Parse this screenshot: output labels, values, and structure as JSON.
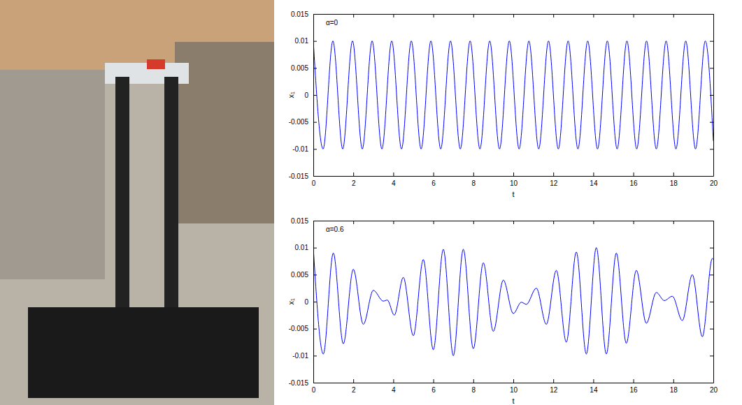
{
  "chart_data": [
    {
      "type": "line",
      "annotation": "α=0",
      "x_label": "t",
      "y_label": "x₁",
      "color": "#0000ff",
      "grid": false,
      "xlim": [
        0,
        20
      ],
      "xticks": [
        0,
        2,
        4,
        6,
        8,
        10,
        12,
        14,
        16,
        18,
        20
      ],
      "ylim": [
        -0.015,
        0.015
      ],
      "yticks": [
        -0.015,
        -0.01,
        -0.005,
        0,
        0.005,
        0.01,
        0.015
      ],
      "x": [
        0,
        0.49,
        0.98,
        1.47,
        1.96,
        2.45,
        2.94,
        3.43,
        3.92,
        4.41,
        4.9,
        5.39,
        5.88,
        6.37,
        6.86,
        7.35,
        7.84,
        8.33,
        8.82,
        9.31,
        9.8,
        10.29,
        10.78,
        11.27,
        11.76,
        12.25,
        12.74,
        13.23,
        13.72,
        14.21,
        14.7,
        15.19,
        15.68,
        16.17,
        16.66,
        17.15,
        17.64,
        18.13,
        18.62,
        19.11,
        19.6,
        20
      ],
      "values": [
        0.01,
        -0.01,
        0.01,
        -0.01,
        0.01,
        -0.01,
        0.01,
        -0.01,
        0.01,
        -0.01,
        0.01,
        -0.01,
        0.01,
        -0.01,
        0.01,
        -0.01,
        0.01,
        -0.01,
        0.01,
        -0.01,
        0.01,
        -0.01,
        0.01,
        -0.01,
        0.01,
        -0.01,
        0.01,
        -0.01,
        0.01,
        -0.01,
        0.01,
        -0.01,
        0.01,
        -0.01,
        0.01,
        -0.01,
        0.01,
        -0.01,
        0.01,
        -0.01,
        0.01,
        -0.0085
      ]
    },
    {
      "type": "line",
      "annotation": "α=0.6",
      "x_label": "t",
      "y_label": "x₁",
      "color": "#0000ff",
      "grid": false,
      "xlim": [
        0,
        20
      ],
      "xticks": [
        0,
        2,
        4,
        6,
        8,
        10,
        12,
        14,
        16,
        18,
        20
      ],
      "ylim": [
        -0.015,
        0.015
      ],
      "yticks": [
        -0.015,
        -0.01,
        -0.005,
        0,
        0.005,
        0.01,
        0.015
      ],
      "x": [
        0,
        0.5,
        1,
        1.5,
        2,
        2.5,
        3,
        3.5,
        3.7,
        4.05,
        4.5,
        5,
        5.5,
        6,
        6.5,
        7,
        7.5,
        8,
        8.5,
        9,
        9.5,
        10,
        10.4,
        10.65,
        11.15,
        11.65,
        12.15,
        12.65,
        13.15,
        13.65,
        14.15,
        14.65,
        15.15,
        15.65,
        16.15,
        16.65,
        17.15,
        17.55,
        17.95,
        18.45,
        18.95,
        19.45,
        19.95,
        20
      ],
      "values": [
        0.01,
        -0.0097,
        0.009,
        -0.0078,
        0.006,
        -0.0042,
        0.0021,
        0.0001,
        0.0003,
        -0.0025,
        0.0045,
        -0.0063,
        0.0078,
        -0.0089,
        0.0097,
        -0.01,
        0.0097,
        -0.0087,
        0.0072,
        -0.0055,
        0.004,
        -0.0022,
        -0.0001,
        -0.0005,
        0.0025,
        -0.0042,
        0.0058,
        -0.0075,
        0.0092,
        -0.0097,
        0.01,
        -0.0097,
        0.009,
        -0.0077,
        0.0058,
        -0.004,
        0.0017,
        0.0002,
        0.001,
        -0.0035,
        0.005,
        -0.0065,
        0.008,
        0.0078
      ]
    }
  ]
}
